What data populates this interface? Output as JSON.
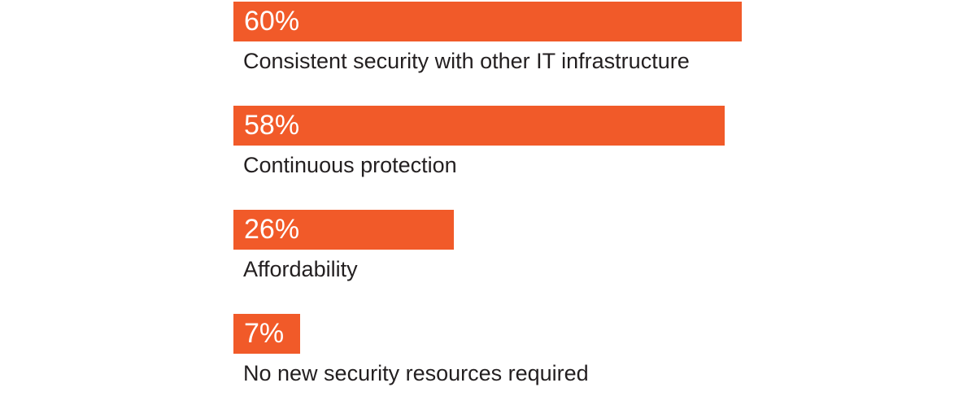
{
  "chart_data": {
    "type": "bar",
    "orientation": "horizontal",
    "categories": [
      "Consistent security with other IT infrastructure",
      "Continuous protection",
      "Affordability",
      "No new security resources required"
    ],
    "values": [
      60,
      58,
      26,
      7
    ],
    "value_labels": [
      "60%",
      "58%",
      "26%",
      "7%"
    ],
    "unit": "%",
    "xlim": [
      0,
      100
    ],
    "grid": false,
    "legend": "none",
    "colors": {
      "bar": "#f15a29",
      "value_text": "#ffffff",
      "label_text": "#231f20",
      "background": "#ffffff"
    }
  }
}
